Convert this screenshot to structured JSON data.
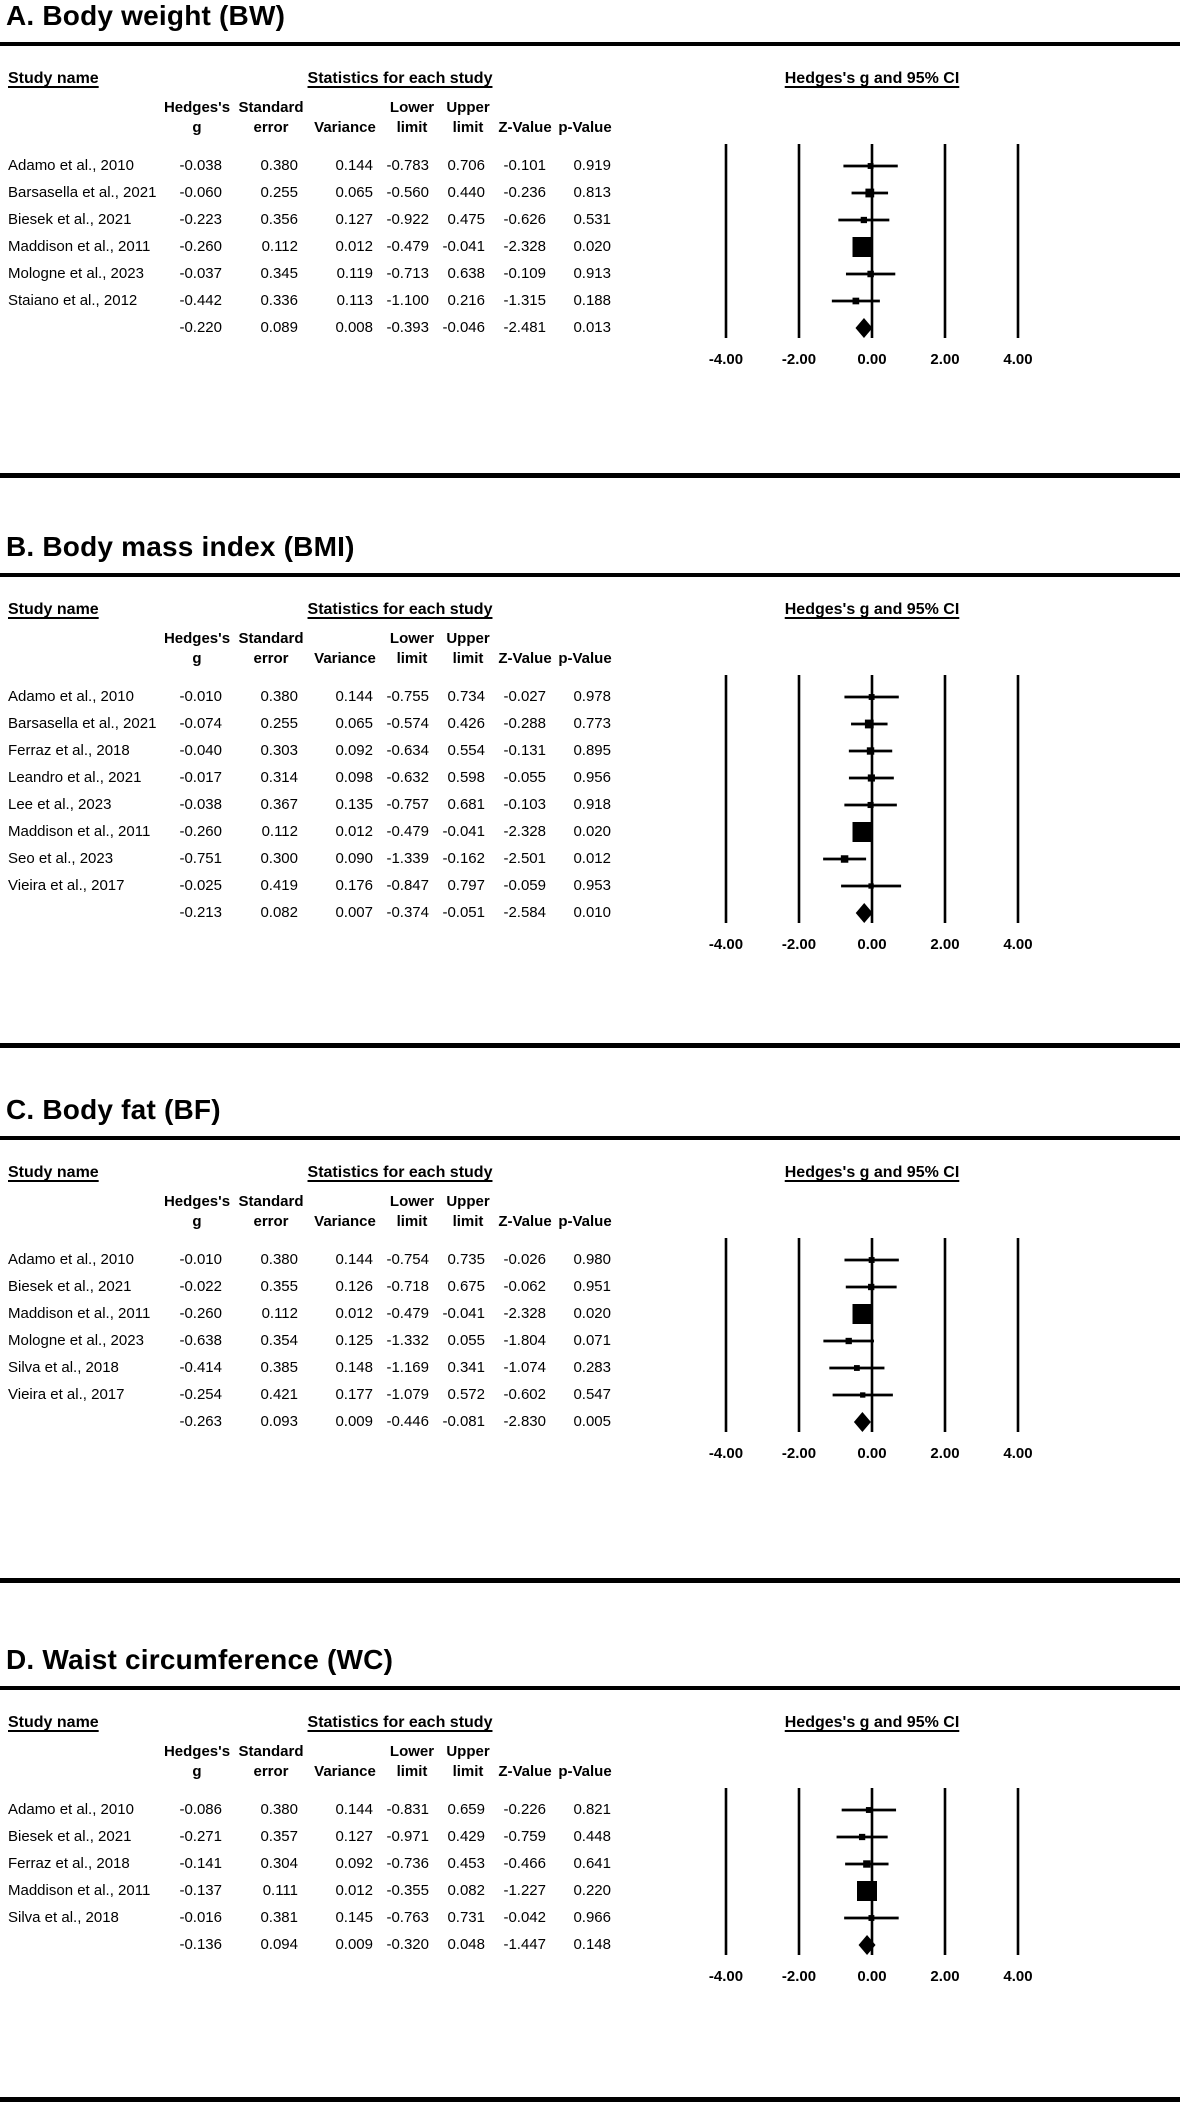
{
  "ink_color": "#000000",
  "headers": {
    "study": "Study name",
    "stats": "Statistics for each study",
    "plot": "Hedges's g and 95% CI",
    "sub_line1": {
      "g": "Hedges's",
      "se": "Standard",
      "lower": "Lower",
      "upper": "Upper"
    },
    "sub_line2": {
      "g": "g",
      "se": "error",
      "variance": "Variance",
      "lower": "limit",
      "upper": "limit",
      "z": "Z-Value",
      "p": "p-Value"
    }
  },
  "chart_data": [
    {
      "type": "scatter",
      "subtype": "forest-plot",
      "title": "A. Body weight (BW)",
      "xlim": [
        -4,
        4
      ],
      "x_ticks": [
        "-4.00",
        "-2.00",
        "0.00",
        "2.00",
        "4.00"
      ],
      "effect_label": "Hedges's g and 95% CI",
      "columns": [
        "Hedges's g",
        "Standard error",
        "Variance",
        "Lower limit",
        "Upper limit",
        "Z-Value",
        "p-Value"
      ],
      "studies": [
        {
          "name": "Adamo et al., 2010",
          "g": "-0.038",
          "se": "0.380",
          "variance": "0.144",
          "lower": "-0.783",
          "upper": "0.706",
          "z": "-0.101",
          "p": "0.919"
        },
        {
          "name": "Barsasella et al., 2021",
          "g": "-0.060",
          "se": "0.255",
          "variance": "0.065",
          "lower": "-0.560",
          "upper": "0.440",
          "z": "-0.236",
          "p": "0.813"
        },
        {
          "name": "Biesek et al., 2021",
          "g": "-0.223",
          "se": "0.356",
          "variance": "0.127",
          "lower": "-0.922",
          "upper": "0.475",
          "z": "-0.626",
          "p": "0.531"
        },
        {
          "name": "Maddison et al., 2011",
          "g": "-0.260",
          "se": "0.112",
          "variance": "0.012",
          "lower": "-0.479",
          "upper": "-0.041",
          "z": "-2.328",
          "p": "0.020"
        },
        {
          "name": "Mologne et al., 2023",
          "g": "-0.037",
          "se": "0.345",
          "variance": "0.119",
          "lower": "-0.713",
          "upper": "0.638",
          "z": "-0.109",
          "p": "0.913"
        },
        {
          "name": "Staiano et al., 2012",
          "g": "-0.442",
          "se": "0.336",
          "variance": "0.113",
          "lower": "-1.100",
          "upper": "0.216",
          "z": "-1.315",
          "p": "0.188"
        }
      ],
      "summary": {
        "g": "-0.220",
        "se": "0.089",
        "variance": "0.008",
        "lower": "-0.393",
        "upper": "-0.046",
        "z": "-2.481",
        "p": "0.013"
      }
    },
    {
      "type": "scatter",
      "subtype": "forest-plot",
      "title": "B. Body mass index (BMI)",
      "xlim": [
        -4,
        4
      ],
      "x_ticks": [
        "-4.00",
        "-2.00",
        "0.00",
        "2.00",
        "4.00"
      ],
      "effect_label": "Hedges's g and 95% CI",
      "columns": [
        "Hedges's g",
        "Standard error",
        "Variance",
        "Lower limit",
        "Upper limit",
        "Z-Value",
        "p-Value"
      ],
      "studies": [
        {
          "name": "Adamo et al., 2010",
          "g": "-0.010",
          "se": "0.380",
          "variance": "0.144",
          "lower": "-0.755",
          "upper": "0.734",
          "z": "-0.027",
          "p": "0.978"
        },
        {
          "name": "Barsasella et al., 2021",
          "g": "-0.074",
          "se": "0.255",
          "variance": "0.065",
          "lower": "-0.574",
          "upper": "0.426",
          "z": "-0.288",
          "p": "0.773"
        },
        {
          "name": "Ferraz et al., 2018",
          "g": "-0.040",
          "se": "0.303",
          "variance": "0.092",
          "lower": "-0.634",
          "upper": "0.554",
          "z": "-0.131",
          "p": "0.895"
        },
        {
          "name": "Leandro et al., 2021",
          "g": "-0.017",
          "se": "0.314",
          "variance": "0.098",
          "lower": "-0.632",
          "upper": "0.598",
          "z": "-0.055",
          "p": "0.956"
        },
        {
          "name": "Lee et al., 2023",
          "g": "-0.038",
          "se": "0.367",
          "variance": "0.135",
          "lower": "-0.757",
          "upper": "0.681",
          "z": "-0.103",
          "p": "0.918"
        },
        {
          "name": "Maddison et al., 2011",
          "g": "-0.260",
          "se": "0.112",
          "variance": "0.012",
          "lower": "-0.479",
          "upper": "-0.041",
          "z": "-2.328",
          "p": "0.020"
        },
        {
          "name": "Seo et al., 2023",
          "g": "-0.751",
          "se": "0.300",
          "variance": "0.090",
          "lower": "-1.339",
          "upper": "-0.162",
          "z": "-2.501",
          "p": "0.012"
        },
        {
          "name": "Vieira et al., 2017",
          "g": "-0.025",
          "se": "0.419",
          "variance": "0.176",
          "lower": "-0.847",
          "upper": "0.797",
          "z": "-0.059",
          "p": "0.953"
        }
      ],
      "summary": {
        "g": "-0.213",
        "se": "0.082",
        "variance": "0.007",
        "lower": "-0.374",
        "upper": "-0.051",
        "z": "-2.584",
        "p": "0.010"
      }
    },
    {
      "type": "scatter",
      "subtype": "forest-plot",
      "title": "C. Body fat (BF)",
      "xlim": [
        -4,
        4
      ],
      "x_ticks": [
        "-4.00",
        "-2.00",
        "0.00",
        "2.00",
        "4.00"
      ],
      "effect_label": "Hedges's g and 95% CI",
      "columns": [
        "Hedges's g",
        "Standard error",
        "Variance",
        "Lower limit",
        "Upper limit",
        "Z-Value",
        "p-Value"
      ],
      "studies": [
        {
          "name": "Adamo et al., 2010",
          "g": "-0.010",
          "se": "0.380",
          "variance": "0.144",
          "lower": "-0.754",
          "upper": "0.735",
          "z": "-0.026",
          "p": "0.980"
        },
        {
          "name": "Biesek et al., 2021",
          "g": "-0.022",
          "se": "0.355",
          "variance": "0.126",
          "lower": "-0.718",
          "upper": "0.675",
          "z": "-0.062",
          "p": "0.951"
        },
        {
          "name": "Maddison et al., 2011",
          "g": "-0.260",
          "se": "0.112",
          "variance": "0.012",
          "lower": "-0.479",
          "upper": "-0.041",
          "z": "-2.328",
          "p": "0.020"
        },
        {
          "name": "Mologne et al., 2023",
          "g": "-0.638",
          "se": "0.354",
          "variance": "0.125",
          "lower": "-1.332",
          "upper": "0.055",
          "z": "-1.804",
          "p": "0.071"
        },
        {
          "name": "Silva et al., 2018",
          "g": "-0.414",
          "se": "0.385",
          "variance": "0.148",
          "lower": "-1.169",
          "upper": "0.341",
          "z": "-1.074",
          "p": "0.283"
        },
        {
          "name": "Vieira et al., 2017",
          "g": "-0.254",
          "se": "0.421",
          "variance": "0.177",
          "lower": "-1.079",
          "upper": "0.572",
          "z": "-0.602",
          "p": "0.547"
        }
      ],
      "summary": {
        "g": "-0.263",
        "se": "0.093",
        "variance": "0.009",
        "lower": "-0.446",
        "upper": "-0.081",
        "z": "-2.830",
        "p": "0.005"
      }
    },
    {
      "type": "scatter",
      "subtype": "forest-plot",
      "title": "D. Waist circumference (WC)",
      "xlim": [
        -4,
        4
      ],
      "x_ticks": [
        "-4.00",
        "-2.00",
        "0.00",
        "2.00",
        "4.00"
      ],
      "effect_label": "Hedges's g and 95% CI",
      "columns": [
        "Hedges's g",
        "Standard error",
        "Variance",
        "Lower limit",
        "Upper limit",
        "Z-Value",
        "p-Value"
      ],
      "studies": [
        {
          "name": "Adamo et al., 2010",
          "g": "-0.086",
          "se": "0.380",
          "variance": "0.144",
          "lower": "-0.831",
          "upper": "0.659",
          "z": "-0.226",
          "p": "0.821"
        },
        {
          "name": "Biesek et al., 2021",
          "g": "-0.271",
          "se": "0.357",
          "variance": "0.127",
          "lower": "-0.971",
          "upper": "0.429",
          "z": "-0.759",
          "p": "0.448"
        },
        {
          "name": "Ferraz et al., 2018",
          "g": "-0.141",
          "se": "0.304",
          "variance": "0.092",
          "lower": "-0.736",
          "upper": "0.453",
          "z": "-0.466",
          "p": "0.641"
        },
        {
          "name": "Maddison et al., 2011",
          "g": "-0.137",
          "se": "0.111",
          "variance": "0.012",
          "lower": "-0.355",
          "upper": "0.082",
          "z": "-1.227",
          "p": "0.220"
        },
        {
          "name": "Silva et al., 2018",
          "g": "-0.016",
          "se": "0.381",
          "variance": "0.145",
          "lower": "-0.763",
          "upper": "0.731",
          "z": "-0.042",
          "p": "0.966"
        }
      ],
      "summary": {
        "g": "-0.136",
        "se": "0.094",
        "variance": "0.009",
        "lower": "-0.320",
        "upper": "0.048",
        "z": "-1.447",
        "p": "0.148"
      }
    }
  ]
}
